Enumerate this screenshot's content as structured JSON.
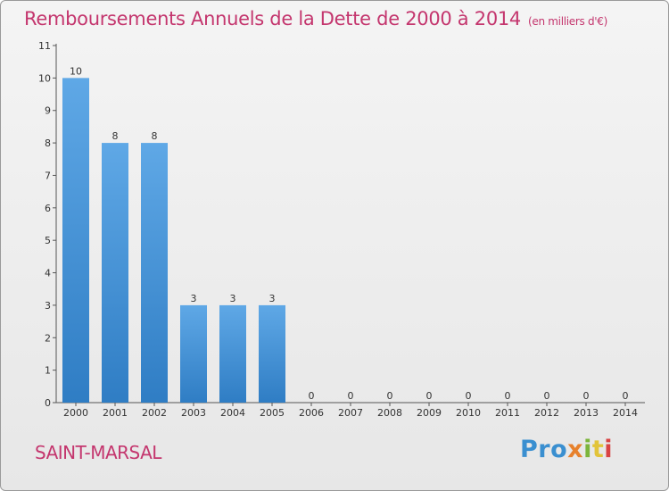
{
  "title": "Remboursements Annuels de la Dette de 2000 à 2014",
  "unit": "(en milliers d'€)",
  "commune": "SAINT-MARSAL",
  "logo": {
    "p1": "Pro",
    "p2": "x",
    "p3": "i",
    "p4": "t",
    "p5": "i"
  },
  "colors": {
    "title": "#c4366e",
    "bar_light": "#5fa8e6",
    "bar_dark": "#2f7dc4"
  },
  "chart_data": {
    "type": "bar",
    "categories": [
      "2000",
      "2001",
      "2002",
      "2003",
      "2004",
      "2005",
      "2006",
      "2007",
      "2008",
      "2009",
      "2010",
      "2011",
      "2012",
      "2013",
      "2014"
    ],
    "values": [
      10,
      8,
      8,
      3,
      3,
      3,
      0,
      0,
      0,
      0,
      0,
      0,
      0,
      0,
      0
    ],
    "ylim": [
      0,
      11
    ],
    "yticks": [
      0,
      1,
      2,
      3,
      4,
      5,
      6,
      7,
      8,
      9,
      10,
      11
    ],
    "title": "Remboursements Annuels de la Dette de 2000 à 2014",
    "xlabel": "",
    "ylabel": ""
  }
}
